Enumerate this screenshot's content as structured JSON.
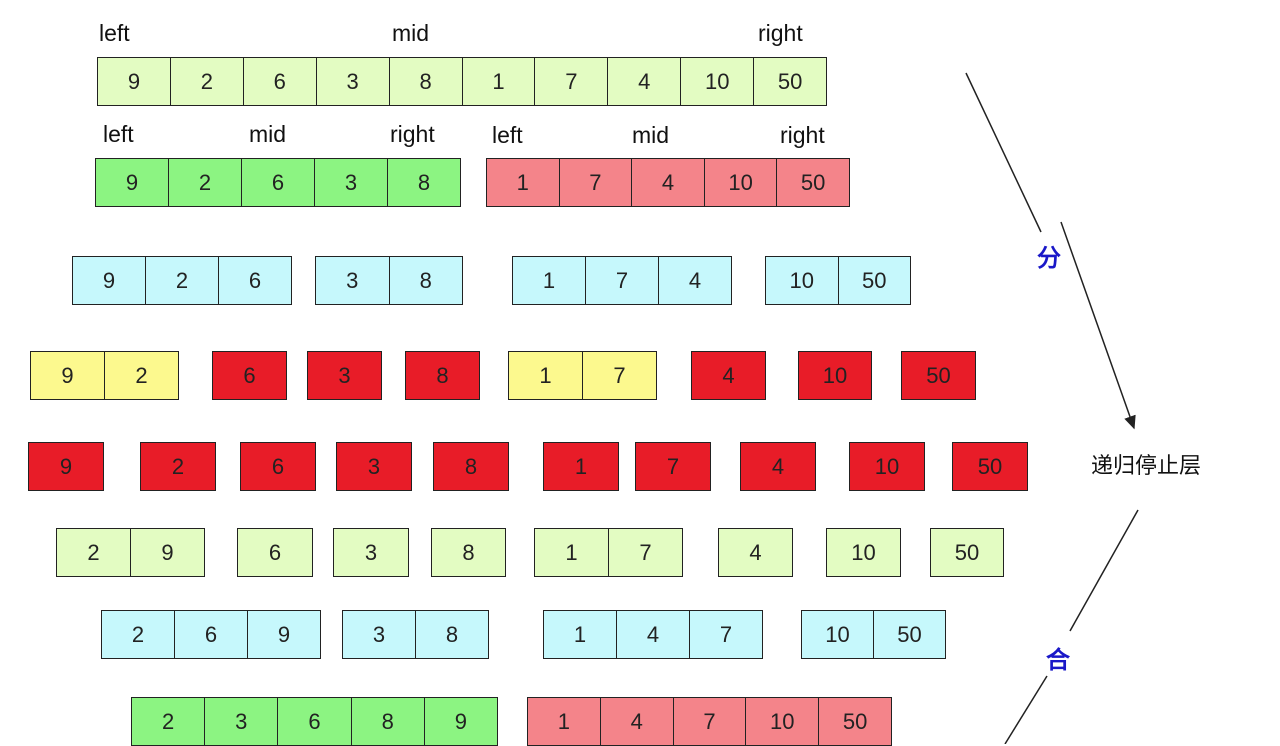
{
  "colors": {
    "lightgreen": "#e3fcc2",
    "green": "#8cf482",
    "pink": "#f4848a",
    "cyan": "#c6f8fc",
    "yellow": "#fcf98e",
    "red": "#e81c28"
  },
  "pointer_labels": [
    [
      "left",
      "mid",
      "right"
    ],
    [
      "left",
      "mid",
      "right"
    ],
    [
      "left",
      "mid",
      "right"
    ]
  ],
  "rows": [
    [
      {
        "color": "lightgreen",
        "values": [
          "9",
          "2",
          "6",
          "3",
          "8",
          "1",
          "7",
          "4",
          "10",
          "50"
        ]
      }
    ],
    [
      {
        "color": "green",
        "values": [
          "9",
          "2",
          "6",
          "3",
          "8"
        ]
      },
      {
        "color": "pink",
        "values": [
          "1",
          "7",
          "4",
          "10",
          "50"
        ]
      }
    ],
    [
      {
        "color": "cyan",
        "values": [
          "9",
          "2",
          "6"
        ]
      },
      {
        "color": "cyan",
        "values": [
          "3",
          "8"
        ]
      },
      {
        "color": "cyan",
        "values": [
          "1",
          "7",
          "4"
        ]
      },
      {
        "color": "cyan",
        "values": [
          "10",
          "50"
        ]
      }
    ],
    [
      {
        "color": "yellow",
        "values": [
          "9",
          "2"
        ]
      },
      {
        "color": "red",
        "values": [
          "6"
        ]
      },
      {
        "color": "red",
        "values": [
          "3"
        ]
      },
      {
        "color": "red",
        "values": [
          "8"
        ]
      },
      {
        "color": "yellow",
        "values": [
          "1",
          "7"
        ]
      },
      {
        "color": "red",
        "values": [
          "4"
        ]
      },
      {
        "color": "red",
        "values": [
          "10"
        ]
      },
      {
        "color": "red",
        "values": [
          "50"
        ]
      }
    ],
    [
      {
        "color": "red",
        "values": [
          "9"
        ]
      },
      {
        "color": "red",
        "values": [
          "2"
        ]
      },
      {
        "color": "red",
        "values": [
          "6"
        ]
      },
      {
        "color": "red",
        "values": [
          "3"
        ]
      },
      {
        "color": "red",
        "values": [
          "8"
        ]
      },
      {
        "color": "red",
        "values": [
          "1"
        ]
      },
      {
        "color": "red",
        "values": [
          "7"
        ]
      },
      {
        "color": "red",
        "values": [
          "4"
        ]
      },
      {
        "color": "red",
        "values": [
          "10"
        ]
      },
      {
        "color": "red",
        "values": [
          "50"
        ]
      }
    ],
    [
      {
        "color": "lightgreen",
        "values": [
          "2",
          "9"
        ]
      },
      {
        "color": "lightgreen",
        "values": [
          "6"
        ]
      },
      {
        "color": "lightgreen",
        "values": [
          "3"
        ]
      },
      {
        "color": "lightgreen",
        "values": [
          "8"
        ]
      },
      {
        "color": "lightgreen",
        "values": [
          "1",
          "7"
        ]
      },
      {
        "color": "lightgreen",
        "values": [
          "4"
        ]
      },
      {
        "color": "lightgreen",
        "values": [
          "10"
        ]
      },
      {
        "color": "lightgreen",
        "values": [
          "50"
        ]
      }
    ],
    [
      {
        "color": "cyan",
        "values": [
          "2",
          "6",
          "9"
        ]
      },
      {
        "color": "cyan",
        "values": [
          "3",
          "8"
        ]
      },
      {
        "color": "cyan",
        "values": [
          "1",
          "4",
          "7"
        ]
      },
      {
        "color": "cyan",
        "values": [
          "10",
          "50"
        ]
      }
    ],
    [
      {
        "color": "green",
        "values": [
          "2",
          "3",
          "6",
          "8",
          "9"
        ]
      },
      {
        "color": "pink",
        "values": [
          "1",
          "4",
          "7",
          "10",
          "50"
        ]
      }
    ]
  ],
  "annotations": {
    "divide": "分",
    "stop_layer": "递归停止层",
    "merge": "合"
  }
}
